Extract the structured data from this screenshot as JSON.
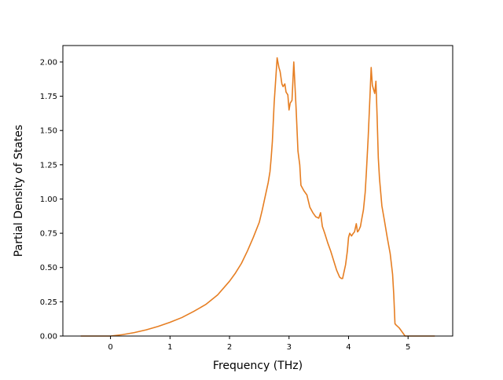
{
  "chart_data": {
    "type": "line",
    "title": "",
    "xlabel": "Frequency (THz)",
    "ylabel": "Partial Density of States",
    "xlim": [
      -0.8,
      5.75
    ],
    "ylim": [
      0.0,
      2.12
    ],
    "xticks": [
      0,
      1,
      2,
      3,
      4,
      5
    ],
    "xtick_labels": [
      "0",
      "1",
      "2",
      "3",
      "4",
      "5"
    ],
    "yticks": [
      0.0,
      0.25,
      0.5,
      0.75,
      1.0,
      1.25,
      1.5,
      1.75,
      2.0
    ],
    "ytick_labels": [
      "0.00",
      "0.25",
      "0.50",
      "0.75",
      "1.00",
      "1.25",
      "1.50",
      "1.75",
      "2.00"
    ],
    "grid": false,
    "legend": "none",
    "series": [
      {
        "color": "#e67e22",
        "x": [
          -0.5,
          -0.2,
          0.0,
          0.2,
          0.4,
          0.6,
          0.8,
          1.0,
          1.2,
          1.4,
          1.6,
          1.8,
          2.0,
          2.1,
          2.2,
          2.3,
          2.4,
          2.5,
          2.55,
          2.6,
          2.65,
          2.68,
          2.7,
          2.72,
          2.75,
          2.8,
          2.83,
          2.85,
          2.88,
          2.9,
          2.93,
          2.95,
          2.98,
          3.0,
          3.02,
          3.05,
          3.08,
          3.12,
          3.15,
          3.18,
          3.2,
          3.25,
          3.3,
          3.35,
          3.4,
          3.45,
          3.5,
          3.53,
          3.56,
          3.6,
          3.65,
          3.7,
          3.75,
          3.8,
          3.85,
          3.88,
          3.9,
          3.93,
          3.95,
          3.98,
          4.0,
          4.02,
          4.05,
          4.08,
          4.1,
          4.13,
          4.15,
          4.17,
          4.2,
          4.22,
          4.25,
          4.28,
          4.3,
          4.33,
          4.36,
          4.38,
          4.4,
          4.42,
          4.44,
          4.46,
          4.48,
          4.5,
          4.52,
          4.54,
          4.56,
          4.6,
          4.65,
          4.7,
          4.74,
          4.76,
          4.78,
          4.8,
          4.85,
          4.9,
          4.95,
          5.0,
          5.2,
          5.45
        ],
        "y": [
          0.0,
          0.0,
          0.0,
          0.01,
          0.025,
          0.045,
          0.07,
          0.1,
          0.135,
          0.18,
          0.23,
          0.3,
          0.4,
          0.46,
          0.53,
          0.62,
          0.72,
          0.83,
          0.92,
          1.02,
          1.12,
          1.2,
          1.3,
          1.42,
          1.7,
          2.03,
          1.96,
          1.93,
          1.84,
          1.82,
          1.84,
          1.78,
          1.76,
          1.65,
          1.7,
          1.72,
          2.0,
          1.65,
          1.35,
          1.25,
          1.1,
          1.06,
          1.03,
          0.94,
          0.9,
          0.87,
          0.86,
          0.9,
          0.8,
          0.75,
          0.68,
          0.62,
          0.55,
          0.48,
          0.43,
          0.42,
          0.42,
          0.48,
          0.52,
          0.62,
          0.72,
          0.75,
          0.73,
          0.75,
          0.76,
          0.82,
          0.76,
          0.77,
          0.8,
          0.85,
          0.92,
          1.05,
          1.2,
          1.45,
          1.75,
          1.96,
          1.83,
          1.8,
          1.77,
          1.86,
          1.6,
          1.3,
          1.15,
          1.05,
          0.95,
          0.85,
          0.72,
          0.6,
          0.45,
          0.3,
          0.09,
          0.08,
          0.06,
          0.03,
          0.0,
          0.0,
          0.0,
          0.0
        ]
      }
    ]
  }
}
